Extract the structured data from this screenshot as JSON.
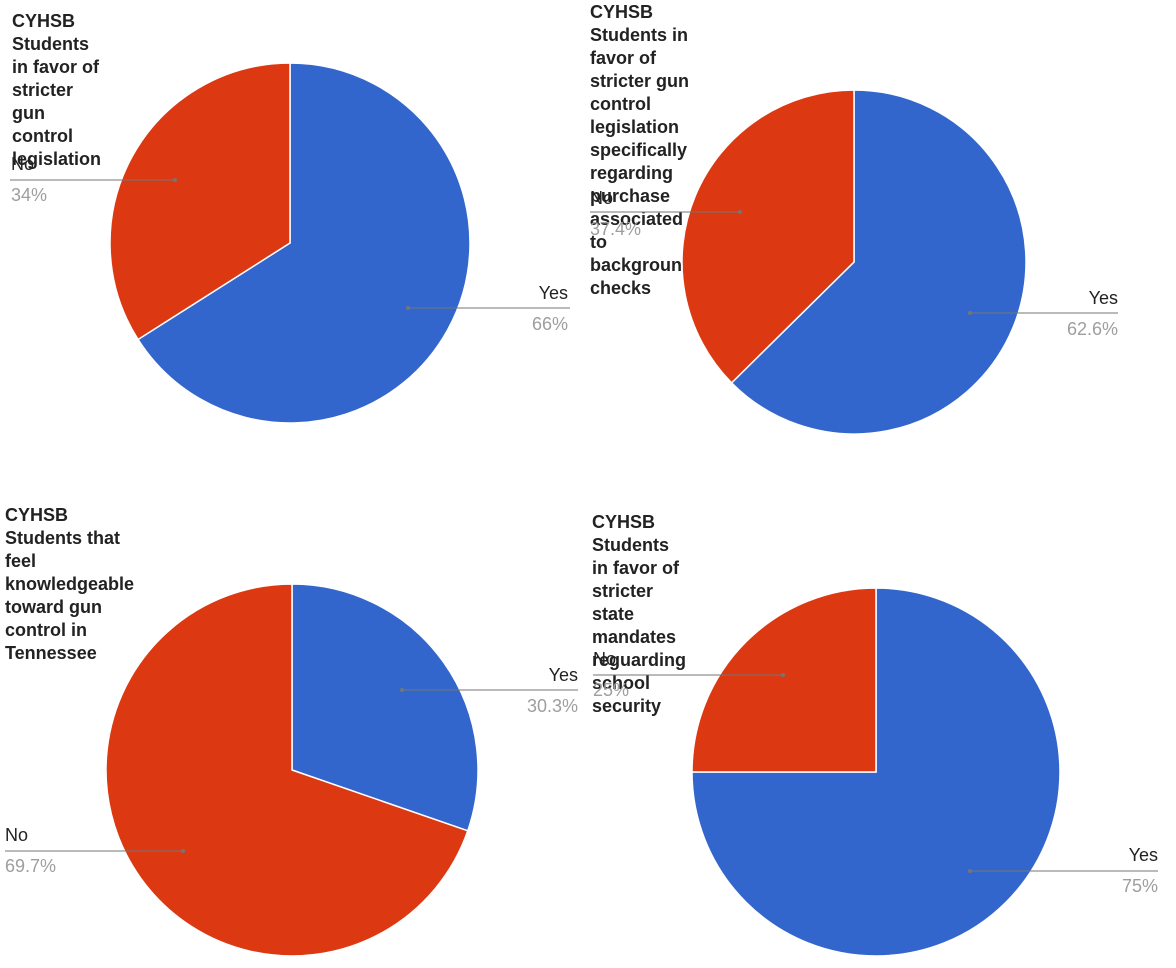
{
  "colors": {
    "yes": "#3366cc",
    "no": "#dc3912"
  },
  "chart_data": [
    {
      "type": "pie",
      "title": "CYHSB Students in favor of stricter gun control legislation",
      "slices": [
        {
          "label": "Yes",
          "value": 66,
          "display": "66%",
          "color": "#3366cc"
        },
        {
          "label": "No",
          "value": 34,
          "display": "34%",
          "color": "#dc3912"
        }
      ]
    },
    {
      "type": "pie",
      "title": "CYHSB Students in favor of stricter gun control legislation\nspecifically regarding purchase associated to background\nchecks",
      "slices": [
        {
          "label": "Yes",
          "value": 62.6,
          "display": "62.6%",
          "color": "#3366cc"
        },
        {
          "label": "No",
          "value": 37.4,
          "display": "37.4%",
          "color": "#dc3912"
        }
      ]
    },
    {
      "type": "pie",
      "title": "CYHSB Students that feel knowledgeable toward gun\ncontrol in Tennessee",
      "slices": [
        {
          "label": "Yes",
          "value": 30.3,
          "display": "30.3%",
          "color": "#3366cc"
        },
        {
          "label": "No",
          "value": 69.7,
          "display": "69.7%",
          "color": "#dc3912"
        }
      ]
    },
    {
      "type": "pie",
      "title": "CYHSB Students in favor of stricter state mandates\nreguarding school security",
      "slices": [
        {
          "label": "Yes",
          "value": 75,
          "display": "75%",
          "color": "#3366cc"
        },
        {
          "label": "No",
          "value": 25,
          "display": "25%",
          "color": "#dc3912"
        }
      ]
    }
  ]
}
